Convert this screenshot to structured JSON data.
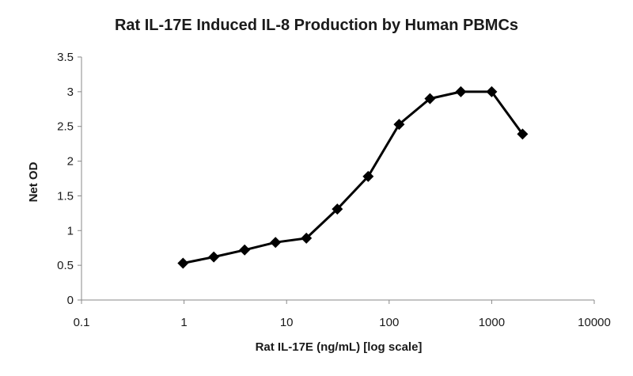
{
  "chart_data": {
    "type": "line",
    "title": "Rat IL-17E Induced IL-8 Production by Human PBMCs",
    "xlabel": "Rat IL-17E (ng/mL) [log scale]",
    "ylabel": "Net OD",
    "x_scale": "log",
    "xlim": [
      0.1,
      10000
    ],
    "ylim": [
      0,
      3.5
    ],
    "x_ticks": [
      "0.1",
      "1",
      "10",
      "100",
      "1000",
      "10000"
    ],
    "y_ticks": [
      "0",
      "0.5",
      "1",
      "1.5",
      "2",
      "2.5",
      "3",
      "3.5"
    ],
    "grid": false,
    "legend": "none",
    "marker": "diamond",
    "series": [
      {
        "color": "#000000",
        "x": [
          0.977,
          1.95,
          3.9,
          7.8,
          15.6,
          31.25,
          62.5,
          125,
          250,
          500,
          1000,
          2000
        ],
        "y": [
          0.53,
          0.62,
          0.72,
          0.83,
          0.89,
          1.31,
          1.78,
          2.53,
          2.9,
          3.0,
          3.0,
          2.39
        ]
      }
    ]
  }
}
